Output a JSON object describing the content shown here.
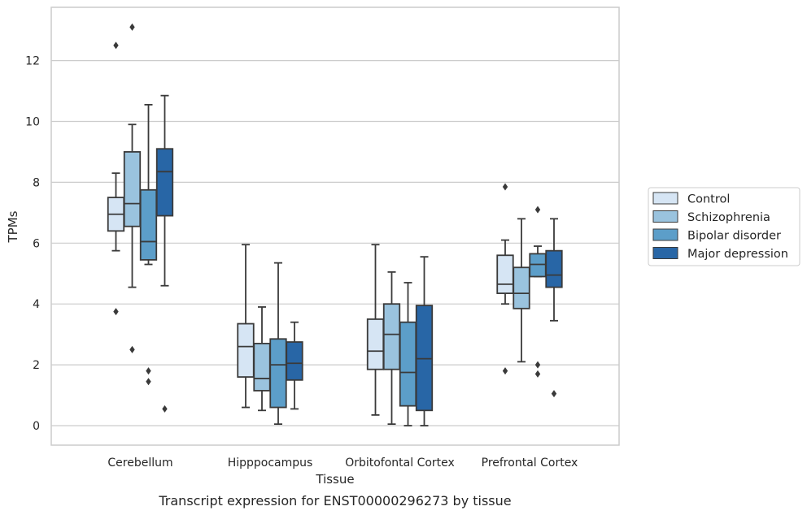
{
  "chart_data": {
    "type": "box",
    "caption": "Transcript expression for ENST00000296273 by tissue",
    "xlabel": "Tissue",
    "ylabel": "TPMs",
    "ylim": [
      -0.65,
      13.8
    ],
    "yticks": [
      0,
      2,
      4,
      6,
      8,
      10,
      12
    ],
    "grid": "horizontal",
    "legend_position": "right",
    "categories": [
      "Cerebellum",
      "Hipppocampus",
      "Orbitofontal Cortex",
      "Prefrontal Cortex"
    ],
    "series": [
      {
        "name": "Control",
        "color": "#d6e5f4",
        "boxes": [
          {
            "whisker_low": 5.75,
            "q1": 6.4,
            "median": 6.95,
            "q3": 7.5,
            "whisker_high": 8.3,
            "outliers": [
              12.5,
              3.75
            ]
          },
          {
            "whisker_low": 0.6,
            "q1": 1.6,
            "median": 2.6,
            "q3": 3.35,
            "whisker_high": 5.95,
            "outliers": []
          },
          {
            "whisker_low": 0.35,
            "q1": 1.85,
            "median": 2.45,
            "q3": 3.5,
            "whisker_high": 5.95,
            "outliers": []
          },
          {
            "whisker_low": 4.0,
            "q1": 4.35,
            "median": 4.65,
            "q3": 5.6,
            "whisker_high": 6.1,
            "outliers": [
              7.85,
              1.8
            ]
          }
        ]
      },
      {
        "name": "Schizophrenia",
        "color": "#9ac3de",
        "boxes": [
          {
            "whisker_low": 4.55,
            "q1": 6.55,
            "median": 7.3,
            "q3": 9.0,
            "whisker_high": 9.9,
            "outliers": [
              13.1,
              2.5
            ]
          },
          {
            "whisker_low": 0.5,
            "q1": 1.15,
            "median": 1.55,
            "q3": 2.7,
            "whisker_high": 3.9,
            "outliers": []
          },
          {
            "whisker_low": 0.05,
            "q1": 1.85,
            "median": 3.0,
            "q3": 4.0,
            "whisker_high": 5.05,
            "outliers": []
          },
          {
            "whisker_low": 2.1,
            "q1": 3.85,
            "median": 4.35,
            "q3": 5.2,
            "whisker_high": 6.8,
            "outliers": []
          }
        ]
      },
      {
        "name": "Bipolar disorder",
        "color": "#5c9ec9",
        "boxes": [
          {
            "whisker_low": 5.3,
            "q1": 5.45,
            "median": 6.05,
            "q3": 7.75,
            "whisker_high": 10.55,
            "outliers": [
              1.8,
              1.45
            ]
          },
          {
            "whisker_low": 0.05,
            "q1": 0.6,
            "median": 2.0,
            "q3": 2.85,
            "whisker_high": 5.35,
            "outliers": []
          },
          {
            "whisker_low": 0.0,
            "q1": 0.65,
            "median": 1.75,
            "q3": 3.4,
            "whisker_high": 4.7,
            "outliers": []
          },
          {
            "whisker_low": 4.9,
            "q1": 4.9,
            "median": 5.3,
            "q3": 5.65,
            "whisker_high": 5.9,
            "outliers": [
              7.1,
              2.0,
              1.7
            ]
          }
        ]
      },
      {
        "name": "Major depression",
        "color": "#2866a6",
        "boxes": [
          {
            "whisker_low": 4.6,
            "q1": 6.9,
            "median": 8.35,
            "q3": 9.1,
            "whisker_high": 10.85,
            "outliers": [
              0.55
            ]
          },
          {
            "whisker_low": 0.55,
            "q1": 1.5,
            "median": 2.05,
            "q3": 2.75,
            "whisker_high": 3.4,
            "outliers": []
          },
          {
            "whisker_low": 0.0,
            "q1": 0.5,
            "median": 2.2,
            "q3": 3.95,
            "whisker_high": 5.55,
            "outliers": []
          },
          {
            "whisker_low": 3.45,
            "q1": 4.55,
            "median": 4.95,
            "q3": 5.75,
            "whisker_high": 6.8,
            "outliers": [
              1.05
            ]
          }
        ]
      }
    ]
  },
  "colors": {
    "grid": "#cccccc",
    "frame": "#cccccc",
    "box_edge": "#3a3a3a",
    "background": "#ffffff"
  }
}
